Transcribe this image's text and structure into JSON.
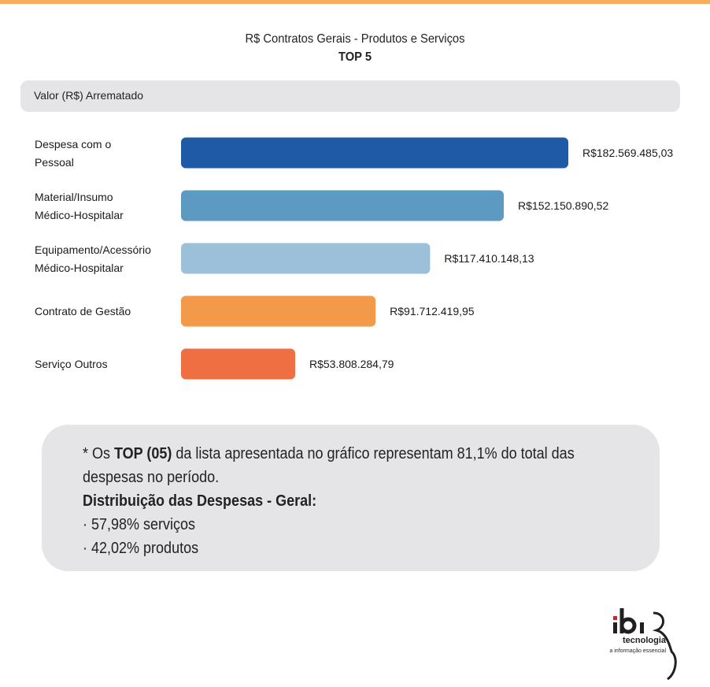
{
  "header": {
    "title": "R$ Contratos Gerais - Produtos e Serviços",
    "subtitle": "TOP 5",
    "column_label": "Valor (R$) Arrematado"
  },
  "chart_data": {
    "type": "bar",
    "orientation": "horizontal",
    "title": "R$ Contratos Gerais - Produtos e Serviços",
    "subtitle": "TOP 5",
    "xlabel": "Valor (R$) Arrematado",
    "categories": [
      [
        "Despesa com o",
        "Pessoal"
      ],
      [
        "Material/Insumo",
        "Médico-Hospitalar"
      ],
      [
        "Equipamento/Acessório",
        "Médico-Hospitalar"
      ],
      [
        "Contrato de Gestão"
      ],
      [
        "Serviço Outros"
      ]
    ],
    "values": [
      182569485.03,
      152150890.52,
      117410148.13,
      91712419.95,
      53808284.79
    ],
    "value_labels": [
      "R$182.569.485,03",
      "R$152.150.890,52",
      "R$117.410.148,13",
      "R$91.712.419,95",
      "R$53.808.284,79"
    ],
    "colors": [
      "#1f5aa6",
      "#5d9ac2",
      "#9cc0da",
      "#f3994a",
      "#ef6f42"
    ],
    "grid": false,
    "legend": "none"
  },
  "note": {
    "line1_prefix": "* Os ",
    "line1_bold": "TOP (05)",
    "line1_suffix": " da lista apresentada no gráfico representam 81,1% do total das despesas no período.",
    "heading": "Distribuição das Despesas - Geral:",
    "items": [
      "· 57,98% serviços",
      "· 42,02% produtos"
    ]
  },
  "logo": {
    "name": "ibi",
    "brand": "tecnologia",
    "tagline": "a informação essencial"
  }
}
